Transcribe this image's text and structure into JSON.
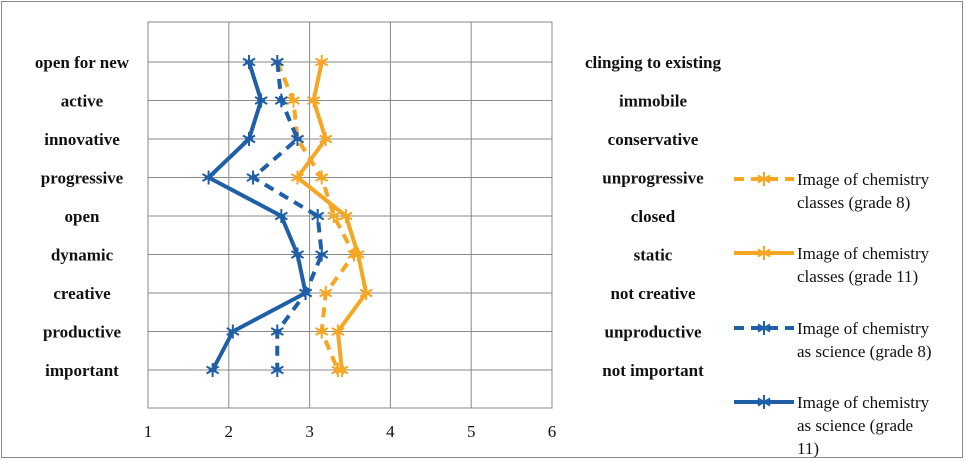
{
  "chart_data": {
    "type": "line",
    "orientation": "horizontal-profile",
    "x_ticks": [
      1,
      2,
      3,
      4,
      5,
      6
    ],
    "xlim": [
      1,
      6
    ],
    "grid": true,
    "legend_position": "right",
    "categories_left": [
      "open for new",
      "active",
      "innovative",
      "progressive",
      "open",
      "dynamic",
      "creative",
      "productive",
      "important"
    ],
    "categories_right": [
      "clinging to existing",
      "immobile",
      "conservative",
      "unprogressive",
      "closed",
      "static",
      "not creative",
      "unproductive",
      "not important"
    ],
    "series": [
      {
        "name": "Image of chemistry classes (grade 8)",
        "legend_lines": [
          "Image of chemistry",
          "classes (grade 8)"
        ],
        "color": "#F5A623",
        "dash": true,
        "values": [
          2.6,
          2.8,
          2.85,
          3.15,
          3.3,
          3.55,
          3.2,
          3.15,
          3.35
        ]
      },
      {
        "name": "Image of chemistry classes (grade 11)",
        "legend_lines": [
          "Image of chemistry",
          "classes (grade 11)"
        ],
        "color": "#F5A623",
        "dash": false,
        "values": [
          3.15,
          3.05,
          3.2,
          2.85,
          3.45,
          3.6,
          3.7,
          3.35,
          3.4
        ]
      },
      {
        "name": "Image of chemistry as science (grade 8)",
        "legend_lines": [
          "Image of chemistry",
          "as science (grade 8)"
        ],
        "color": "#1F5FA8",
        "dash": true,
        "values": [
          2.6,
          2.65,
          2.85,
          2.3,
          3.1,
          3.15,
          2.95,
          2.6,
          2.6
        ]
      },
      {
        "name": "Image of chemistry as science (grade 11)",
        "legend_lines": [
          "Image of chemistry",
          "as science (grade",
          "11)"
        ],
        "color": "#1F5FA8",
        "dash": false,
        "values": [
          2.25,
          2.4,
          2.25,
          1.75,
          2.65,
          2.85,
          2.95,
          2.05,
          1.8
        ]
      }
    ]
  }
}
